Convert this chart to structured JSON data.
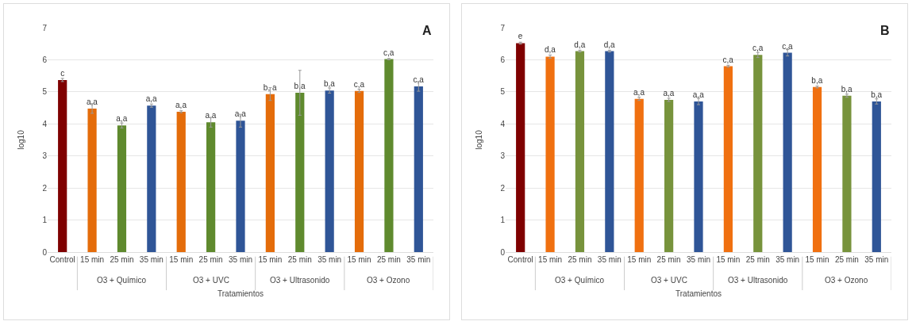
{
  "chart_data": [
    {
      "type": "bar",
      "title": "A",
      "xlabel": "Tratamientos",
      "ylabel": "log10",
      "categories": [
        "Control",
        "15 min",
        "25 min",
        "35 min",
        "15 min",
        "25 min",
        "35 min",
        "15 min",
        "25 min",
        "35 min",
        "15 min",
        "25 min",
        "35 min"
      ],
      "values": [
        5.37,
        4.48,
        3.95,
        4.57,
        4.38,
        4.05,
        4.1,
        4.93,
        4.97,
        5.04,
        5.03,
        6.02,
        5.17
      ],
      "errors": [
        0.05,
        0.15,
        0.08,
        0.05,
        0.03,
        0.15,
        0.2,
        0.2,
        0.7,
        0.08,
        0.05,
        0.02,
        0.15
      ],
      "value_labels": [
        "c",
        "a,a",
        "a,a",
        "a,a",
        "a,a",
        "a,a",
        "a,a",
        "b, a",
        "b,a",
        "b,a",
        "c,a",
        "c,a",
        "c,a"
      ],
      "colors": [
        "#7f0000",
        "#e46c0a",
        "#5f8a2e",
        "#2f5597",
        "#e46c0a",
        "#5f8a2e",
        "#2f5597",
        "#e46c0a",
        "#5f8a2e",
        "#2f5597",
        "#e46c0a",
        "#5f8a2e",
        "#2f5597"
      ],
      "annotations": [
        "O3 + Químico",
        "O3 + UVC",
        "O3 + Ultrasonido",
        "O3 + Ozono"
      ],
      "ylim": [
        0,
        7
      ],
      "yticks": [
        0,
        1,
        2,
        3,
        4,
        5,
        6,
        7
      ],
      "grid": "y"
    },
    {
      "type": "bar",
      "title": "B",
      "xlabel": "Tratamientos",
      "ylabel": "log10",
      "categories": [
        "Control",
        "15 min",
        "25 min",
        "35 min",
        "15 min",
        "25 min",
        "35 min",
        "15 min",
        "25 min",
        "35 min",
        "15 min",
        "25 min",
        "35 min"
      ],
      "values": [
        6.52,
        6.1,
        6.27,
        6.27,
        4.78,
        4.75,
        4.7,
        5.8,
        6.15,
        6.22,
        5.15,
        4.88,
        4.7
      ],
      "errors": [
        0.03,
        0.05,
        0.03,
        0.03,
        0.05,
        0.05,
        0.1,
        0.03,
        0.08,
        0.1,
        0.03,
        0.05,
        0.08
      ],
      "value_labels": [
        "e",
        "d,a",
        "d,a",
        "d,a",
        "a,a",
        "a,a",
        "a,a",
        "c,a",
        "c,a",
        "c,a",
        "b,a",
        "b,a",
        "b,a"
      ],
      "colors": [
        "#7f0000",
        "#f07010",
        "#77933c",
        "#2f5597",
        "#f07010",
        "#77933c",
        "#2f5597",
        "#f07010",
        "#77933c",
        "#2f5597",
        "#f07010",
        "#77933c",
        "#2f5597"
      ],
      "annotations": [
        "O3 + Químico",
        "O3 + UVC",
        "O3 + Ultrasonido",
        "O3 + Ozono"
      ],
      "ylim": [
        0,
        7
      ],
      "yticks": [
        0,
        1,
        2,
        3,
        4,
        5,
        6,
        7
      ],
      "grid": "y"
    }
  ]
}
